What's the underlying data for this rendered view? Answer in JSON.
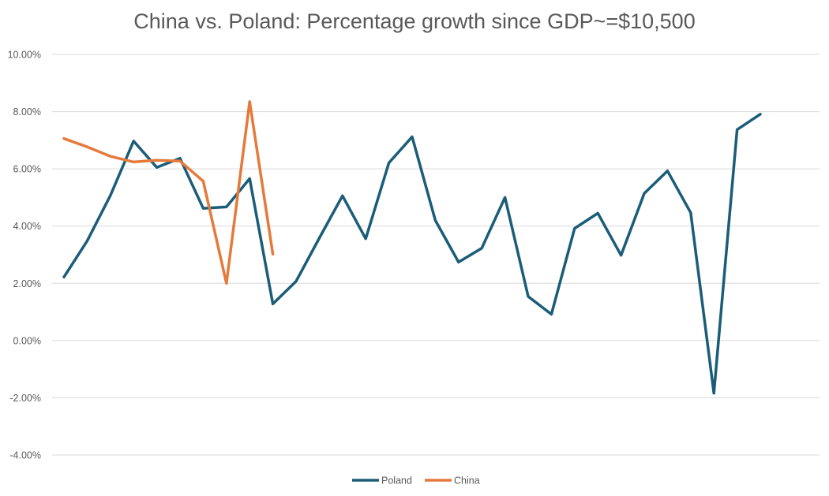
{
  "chart_data": {
    "type": "line",
    "title": "China vs. Poland: Percentage growth since GDP~=$10,500",
    "xlabel": "",
    "ylabel": "",
    "ylim": [
      -0.04,
      0.1
    ],
    "y_ticks": [
      {
        "value": 0.1,
        "label": "10.00%"
      },
      {
        "value": 0.08,
        "label": "8.00%"
      },
      {
        "value": 0.06,
        "label": "6.00%"
      },
      {
        "value": 0.04,
        "label": "4.00%"
      },
      {
        "value": 0.02,
        "label": "2.00%"
      },
      {
        "value": 0.0,
        "label": "0.00%"
      },
      {
        "value": -0.02,
        "label": "-2.00%"
      },
      {
        "value": -0.04,
        "label": "-4.00%"
      }
    ],
    "grid": true,
    "legend_position": "bottom",
    "series": [
      {
        "name": "Poland",
        "color": "#1b5d78",
        "values": [
          0.0222,
          0.0348,
          0.0507,
          0.0697,
          0.0605,
          0.0637,
          0.0462,
          0.0467,
          0.0566,
          0.0128,
          0.0207,
          0.0358,
          0.0506,
          0.0356,
          0.0621,
          0.0712,
          0.042,
          0.0274,
          0.0323,
          0.05,
          0.0154,
          0.0092,
          0.0392,
          0.0445,
          0.0298,
          0.0514,
          0.0593,
          0.0447,
          -0.0184,
          0.0737,
          0.0791
        ]
      },
      {
        "name": "China",
        "color": "#e57a3c",
        "values": [
          0.0706,
          0.0677,
          0.0644,
          0.0624,
          0.063,
          0.0627,
          0.0557,
          0.02,
          0.0835,
          0.0302
        ]
      }
    ]
  }
}
